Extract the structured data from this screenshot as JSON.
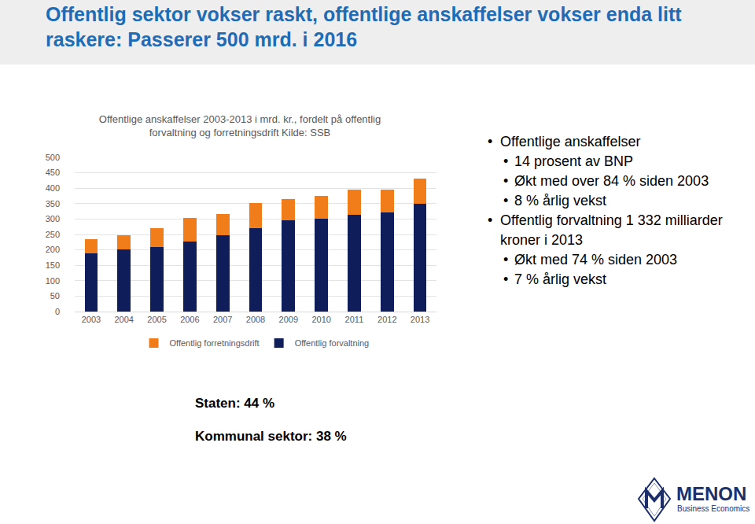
{
  "header": {
    "title_lines": [
      "Offentlig sektor vokser raskt, offentlige anskaffelser vokser enda litt",
      "raskere: Passerer 500 mrd. i 2016"
    ]
  },
  "chart_data": {
    "type": "bar",
    "stacked": true,
    "title": "Offentlige anskaffelser 2003-2013 i mrd. kr., fordelt på offentlig\nforvaltning og forretningsdrift Kilde: SSB",
    "categories": [
      "2003",
      "2004",
      "2005",
      "2006",
      "2007",
      "2008",
      "2009",
      "2010",
      "2011",
      "2012",
      "2013"
    ],
    "series": [
      {
        "name": "Offentlig forvaltning",
        "color": "#0f1e5a",
        "values": [
          189,
          202,
          209,
          227,
          247,
          270,
          296,
          301,
          314,
          321,
          349
        ]
      },
      {
        "name": "Offentlig forretningsdrift",
        "color": "#f07d1a",
        "values": [
          46,
          45,
          61,
          77,
          69,
          82,
          69,
          74,
          81,
          74,
          82
        ]
      }
    ],
    "ylim": [
      0,
      500
    ],
    "yticks": [
      0,
      50,
      100,
      150,
      200,
      250,
      300,
      350,
      400,
      450,
      500
    ],
    "grid": true,
    "legend": "bottom"
  },
  "bullets": [
    {
      "text": "Offentlige anskaffelser",
      "items": [
        "14 prosent av BNP",
        "Økt med over 84 % siden 2003",
        "8 % årlig vekst"
      ]
    },
    {
      "text": "Offentlig forvaltning 1 332 milliarder kroner i 2013",
      "items": [
        "Økt med 74 % siden 2003",
        "7 % årlig vekst"
      ]
    }
  ],
  "notes": [
    "Staten: 44 %",
    "Kommunal sektor: 38 %"
  ],
  "logo": {
    "name": "MENON",
    "tagline": "Business Economics"
  }
}
